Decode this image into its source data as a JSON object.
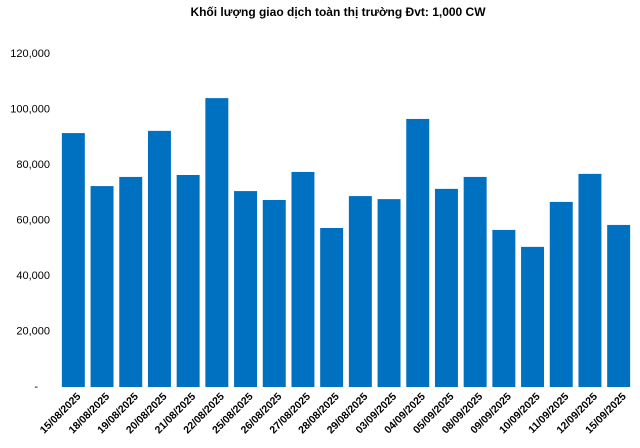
{
  "chart_data": {
    "type": "bar",
    "title": "Khối lượng giao dịch toàn thị trường Đvt: 1,000 CW",
    "categories": [
      "15/08/2025",
      "18/08/2025",
      "19/08/2025",
      "20/08/2025",
      "21/08/2025",
      "22/08/2025",
      "25/08/2025",
      "26/08/2025",
      "27/08/2025",
      "28/08/2025",
      "29/08/2025",
      "03/09/2025",
      "04/09/2025",
      "05/09/2025",
      "08/09/2025",
      "09/09/2025",
      "10/09/2025",
      "11/09/2025",
      "12/09/2025",
      "15/09/2025"
    ],
    "values": [
      91500,
      72400,
      75700,
      92300,
      76400,
      104100,
      70600,
      67400,
      77500,
      57300,
      68800,
      67700,
      96600,
      71400,
      75700,
      56600,
      50500,
      66700,
      76800,
      58400
    ],
    "color": "#0070c0",
    "ylim": [
      0,
      120000
    ],
    "yticks": [
      {
        "value": 0,
        "label": "-"
      },
      {
        "value": 20000,
        "label": "20,000"
      },
      {
        "value": 40000,
        "label": "40,000"
      },
      {
        "value": 60000,
        "label": "60,000"
      },
      {
        "value": 80000,
        "label": "80,000"
      },
      {
        "value": 100000,
        "label": "100,000"
      },
      {
        "value": 120000,
        "label": "120,000"
      }
    ],
    "grid": false
  }
}
